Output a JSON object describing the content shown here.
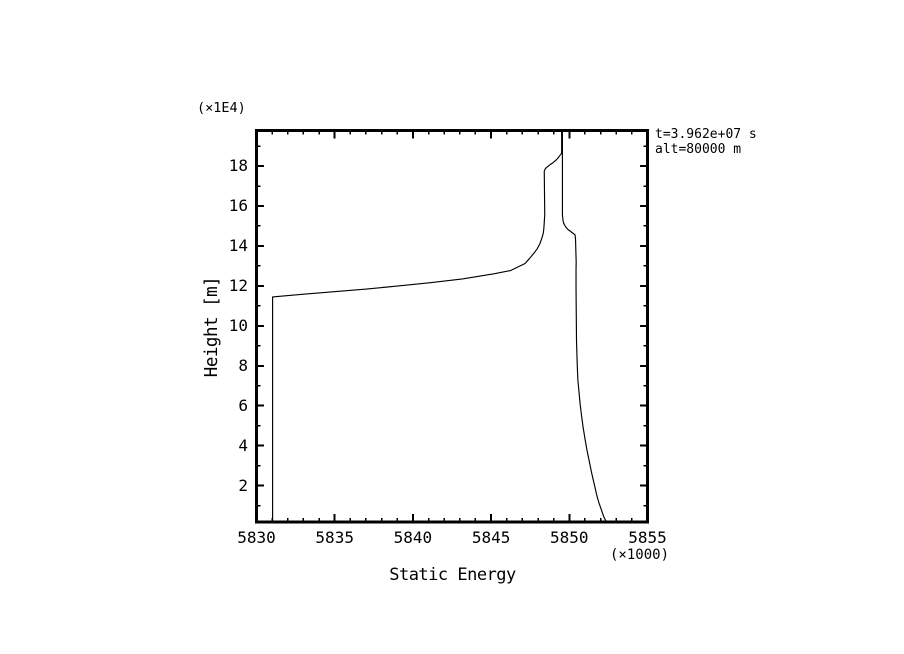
{
  "figure": {
    "background_color": "#ffffff",
    "ink_color": "#000000"
  },
  "chart_data": {
    "type": "line",
    "xlabel": "Static Energy",
    "ylabel": "Height [m]",
    "x_scale_note": "(×1000)",
    "y_scale_note": "(×1E4)",
    "xlim": [
      5830,
      5855
    ],
    "ylim": [
      0.18,
      19.78
    ],
    "x_major_ticks": [
      5830,
      5835,
      5840,
      5845,
      5850,
      5855
    ],
    "x_major_tick_labels": [
      "5830",
      "5835",
      "5840",
      "5845",
      "5850",
      "5855"
    ],
    "x_minor_tick_step": 1,
    "y_major_ticks": [
      2,
      4,
      6,
      8,
      10,
      12,
      14,
      16,
      18
    ],
    "y_major_tick_labels": [
      "2",
      "4",
      "6",
      "8",
      "10",
      "12",
      "14",
      "16",
      "18"
    ],
    "y_minor_tick_step": 1,
    "grid": false,
    "legend": false,
    "annotation": {
      "line1": "t=3.962e+07 s",
      "line2": "alt=80000 m"
    },
    "series": [
      {
        "name": "static-energy-profile",
        "color": "#000000",
        "points": [
          [
            5831.03,
            0.18
          ],
          [
            5831.03,
            11.45
          ],
          [
            5832.92,
            11.58
          ],
          [
            5834.97,
            11.71
          ],
          [
            5837.02,
            11.84
          ],
          [
            5839.07,
            12.0
          ],
          [
            5841.12,
            12.16
          ],
          [
            5843.17,
            12.35
          ],
          [
            5845.22,
            12.61
          ],
          [
            5846.25,
            12.77
          ],
          [
            5847.17,
            13.12
          ],
          [
            5847.43,
            13.35
          ],
          [
            5847.72,
            13.62
          ],
          [
            5847.96,
            13.87
          ],
          [
            5848.13,
            14.13
          ],
          [
            5848.25,
            14.4
          ],
          [
            5848.34,
            14.65
          ],
          [
            5848.37,
            14.86
          ],
          [
            5848.39,
            15.07
          ],
          [
            5848.41,
            15.32
          ],
          [
            5848.43,
            15.55
          ],
          [
            5848.4,
            17.64
          ],
          [
            5848.4,
            17.75
          ],
          [
            5848.45,
            17.84
          ],
          [
            5848.52,
            17.91
          ],
          [
            5848.63,
            17.98
          ],
          [
            5848.77,
            18.07
          ],
          [
            5848.91,
            18.14
          ],
          [
            5849.05,
            18.23
          ],
          [
            5849.18,
            18.32
          ],
          [
            5849.25,
            18.38
          ],
          [
            5849.32,
            18.45
          ],
          [
            5849.47,
            18.6
          ],
          [
            5849.51,
            18.65
          ],
          [
            5849.51,
            19.78
          ],
          [
            5849.56,
            19.78
          ],
          [
            5849.56,
            15.55
          ],
          [
            5849.6,
            15.27
          ],
          [
            5849.64,
            15.14
          ],
          [
            5849.72,
            15.02
          ],
          [
            5849.81,
            14.91
          ],
          [
            5849.93,
            14.81
          ],
          [
            5850.05,
            14.75
          ],
          [
            5850.16,
            14.68
          ],
          [
            5850.28,
            14.61
          ],
          [
            5850.37,
            14.55
          ],
          [
            5850.4,
            14.3
          ],
          [
            5850.42,
            13.71
          ],
          [
            5850.44,
            13.2
          ],
          [
            5850.43,
            12.8
          ],
          [
            5850.43,
            11.93
          ],
          [
            5850.44,
            11.05
          ],
          [
            5850.45,
            10.18
          ],
          [
            5850.46,
            9.31
          ],
          [
            5850.48,
            8.73
          ],
          [
            5850.51,
            8.0
          ],
          [
            5850.55,
            7.27
          ],
          [
            5850.62,
            6.69
          ],
          [
            5850.69,
            6.11
          ],
          [
            5850.78,
            5.52
          ],
          [
            5850.88,
            4.94
          ],
          [
            5851.0,
            4.36
          ],
          [
            5851.13,
            3.78
          ],
          [
            5851.28,
            3.21
          ],
          [
            5851.43,
            2.63
          ],
          [
            5851.6,
            2.06
          ],
          [
            5851.77,
            1.48
          ],
          [
            5851.89,
            1.15
          ],
          [
            5852.05,
            0.79
          ],
          [
            5852.2,
            0.45
          ],
          [
            5852.37,
            0.18
          ]
        ]
      }
    ]
  }
}
